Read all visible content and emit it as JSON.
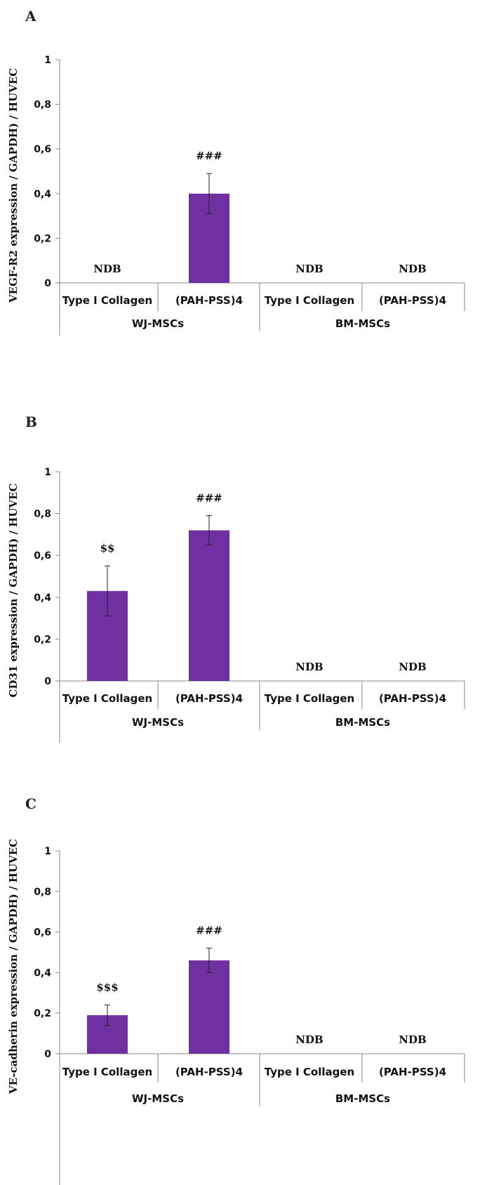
{
  "chart_data": [
    {
      "type": "bar",
      "panel_letter": "A",
      "ylabel": "VEGF-R2 expression / GAPDH) / HUVEC",
      "ylim": [
        0,
        1
      ],
      "yticks": [
        "0",
        "0,2",
        "0,4",
        "0,6",
        "0,8",
        "1"
      ],
      "categories": [
        "Type I Collagen",
        "(PAH-PSS)4",
        "Type I Collagen",
        "(PAH-PSS)4"
      ],
      "groups": [
        "WJ-MSCs",
        "BM-MSCs"
      ],
      "values": [
        null,
        0.4,
        null,
        null
      ],
      "errors": [
        null,
        0.09,
        null,
        null
      ],
      "annotations": [
        "NDB",
        "###",
        "NDB",
        "NDB"
      ],
      "bar_color": "#7030a0",
      "grid": false
    },
    {
      "type": "bar",
      "panel_letter": "B",
      "ylabel": "CD31 expression / GAPDH) / HUVEC",
      "ylim": [
        0,
        1
      ],
      "yticks": [
        "0",
        "0,2",
        "0,4",
        "0,6",
        "0,8",
        "1"
      ],
      "categories": [
        "Type I Collagen",
        "(PAH-PSS)4",
        "Type I Collagen",
        "(PAH-PSS)4"
      ],
      "groups": [
        "WJ-MSCs",
        "BM-MSCs"
      ],
      "values": [
        0.43,
        0.72,
        null,
        null
      ],
      "errors": [
        0.12,
        0.07,
        null,
        null
      ],
      "annotations": [
        "$$",
        "###",
        "NDB",
        "NDB"
      ],
      "bar_color": "#7030a0",
      "grid": false
    },
    {
      "type": "bar",
      "panel_letter": "C",
      "ylabel": "VE-cadherin expression / GAPDH) / HUVEC",
      "ylim": [
        0,
        1
      ],
      "yticks": [
        "0",
        "0,2",
        "0,4",
        "0,6",
        "0,8",
        "1"
      ],
      "categories": [
        "Type I Collagen",
        "(PAH-PSS)4",
        "Type I Collagen",
        "(PAH-PSS)4"
      ],
      "groups": [
        "WJ-MSCs",
        "BM-MSCs"
      ],
      "values": [
        0.19,
        0.46,
        null,
        null
      ],
      "errors": [
        0.05,
        0.06,
        null,
        null
      ],
      "annotations": [
        "$$$",
        "###",
        "NDB",
        "NDB"
      ],
      "bar_color": "#7030a0",
      "grid": false
    }
  ]
}
